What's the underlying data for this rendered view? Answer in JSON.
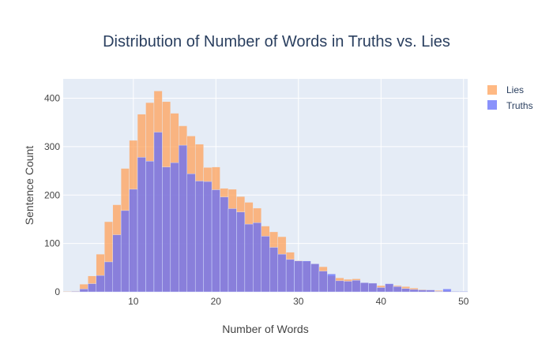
{
  "chart_data": {
    "type": "bar",
    "barmode": "overlay",
    "title": "Distribution of Number of Words in Truths vs. Lies",
    "xlabel": "Number of Words",
    "ylabel": "Sentence Count",
    "xlim": [
      1.5,
      50.5
    ],
    "ylim": [
      0,
      440
    ],
    "xticks": [
      10,
      20,
      30,
      40,
      50
    ],
    "yticks": [
      0,
      100,
      200,
      300,
      400
    ],
    "grid": true,
    "legend_position": "top-right",
    "x": [
      2,
      3,
      4,
      5,
      6,
      7,
      8,
      9,
      10,
      11,
      12,
      13,
      14,
      15,
      16,
      17,
      18,
      19,
      20,
      21,
      22,
      23,
      24,
      25,
      26,
      27,
      28,
      29,
      30,
      31,
      32,
      33,
      34,
      35,
      36,
      37,
      38,
      39,
      40,
      41,
      42,
      43,
      44,
      45,
      46,
      47,
      48,
      49,
      50
    ],
    "series": [
      {
        "name": "Lies",
        "color": "#FFA15A",
        "values": [
          1,
          2,
          16,
          33,
          78,
          145,
          180,
          255,
          313,
          367,
          391,
          415,
          393,
          369,
          343,
          322,
          305,
          257,
          258,
          214,
          212,
          197,
          185,
          173,
          136,
          124,
          114,
          82,
          65,
          63,
          58,
          52,
          33,
          29,
          26,
          27,
          19,
          18,
          13,
          16,
          13,
          11,
          8,
          5,
          4,
          3,
          2,
          1,
          1
        ]
      },
      {
        "name": "Truths",
        "color": "#636EFA",
        "values": [
          0,
          1,
          6,
          17,
          34,
          62,
          118,
          168,
          212,
          278,
          270,
          330,
          258,
          267,
          303,
          244,
          229,
          228,
          211,
          196,
          172,
          165,
          140,
          143,
          115,
          92,
          78,
          67,
          64,
          64,
          58,
          43,
          37,
          23,
          22,
          24,
          19,
          18,
          9,
          17,
          11,
          7,
          5,
          4,
          4,
          1,
          6,
          1,
          1
        ]
      }
    ]
  }
}
